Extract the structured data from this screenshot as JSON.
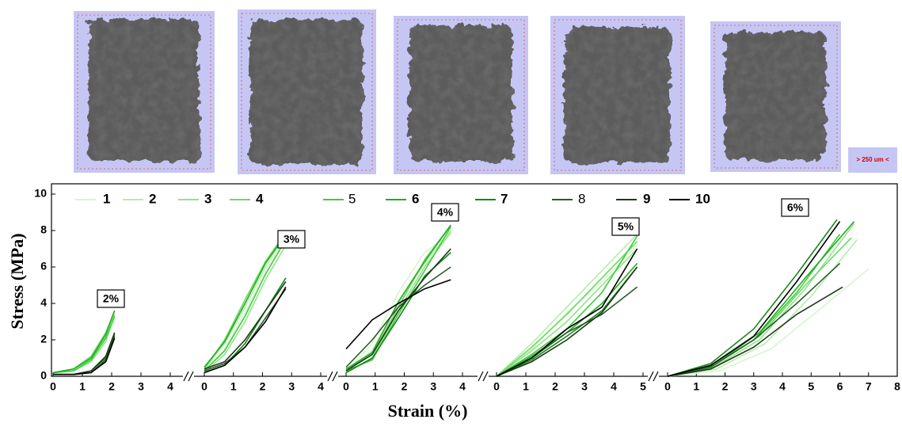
{
  "scale_bar": "> 250 um <",
  "chart_data": {
    "type": "line",
    "ylabel": "Stress (MPa)",
    "xlabel": "Strain (%)",
    "ylim": [
      0,
      10
    ],
    "yticks": [
      0,
      2,
      4,
      6,
      8,
      10
    ],
    "series": [
      {
        "name": "1",
        "color": "#d6f5cf"
      },
      {
        "name": "2",
        "color": "#b5edab"
      },
      {
        "name": "3",
        "color": "#8fe486"
      },
      {
        "name": "4",
        "color": "#69d962"
      },
      {
        "name": "5",
        "color": "#3fcb3c"
      },
      {
        "name": "6",
        "color": "#22ad22"
      },
      {
        "name": "7",
        "color": "#178617"
      },
      {
        "name": "8",
        "color": "#2b5a2b"
      },
      {
        "name": "9",
        "color": "#1b3a1b"
      },
      {
        "name": "10",
        "color": "#000000"
      }
    ],
    "panels": [
      {
        "label": "2%",
        "xlim": [
          0,
          4
        ],
        "xticks": [
          0,
          1,
          2,
          3,
          4
        ],
        "series": [
          {
            "x": [
              0,
              0.7,
              1.3,
              1.8,
              2.1
            ],
            "values": [
              0.2,
              0.3,
              0.9,
              2.0,
              3.0
            ]
          },
          {
            "x": [
              0,
              0.7,
              1.3,
              1.8,
              2.1
            ],
            "values": [
              0.2,
              0.4,
              1.0,
              2.2,
              3.2
            ]
          },
          {
            "x": [
              0,
              0.7,
              1.3,
              1.8,
              2.1
            ],
            "values": [
              0.2,
              0.3,
              0.8,
              1.9,
              3.4
            ]
          },
          {
            "x": [
              0,
              0.7,
              1.3,
              1.8,
              2.1
            ],
            "values": [
              0.2,
              0.4,
              1.1,
              2.4,
              3.6
            ]
          },
          {
            "x": [
              0,
              0.7,
              1.3,
              1.8,
              2.1
            ],
            "values": [
              0.2,
              0.3,
              0.9,
              2.1,
              3.3
            ]
          },
          {
            "x": [
              0,
              0.7,
              1.3,
              1.8,
              2.1
            ],
            "values": [
              0.2,
              0.4,
              1.0,
              2.3,
              3.6
            ]
          },
          {
            "x": [
              0,
              0.7,
              1.3,
              1.8,
              2.1
            ],
            "values": [
              0.1,
              0.1,
              0.3,
              1.0,
              2.3
            ]
          },
          {
            "x": [
              0,
              0.7,
              1.3,
              1.8,
              2.1
            ],
            "values": [
              0.1,
              0.1,
              0.2,
              0.9,
              2.2
            ]
          },
          {
            "x": [
              0,
              0.7,
              1.3,
              1.8,
              2.1
            ],
            "values": [
              0.1,
              0.1,
              0.3,
              1.1,
              2.4
            ]
          },
          {
            "x": [
              0,
              0.7,
              1.3,
              1.8,
              2.1
            ],
            "values": [
              0.1,
              0.1,
              0.2,
              0.8,
              2.1
            ]
          }
        ]
      },
      {
        "label": "3%",
        "xlim": [
          0,
          4
        ],
        "xticks": [
          0,
          1,
          2,
          3,
          4
        ],
        "series": [
          {
            "x": [
              0,
              0.7,
              1.4,
              2.1,
              2.8
            ],
            "values": [
              0.3,
              1.5,
              3.5,
              5.8,
              7.6
            ]
          },
          {
            "x": [
              0,
              0.7,
              1.4,
              2.1,
              2.8
            ],
            "values": [
              0.4,
              1.8,
              3.8,
              6.0,
              7.8
            ]
          },
          {
            "x": [
              0,
              0.7,
              1.4,
              2.1,
              2.8
            ],
            "values": [
              0.2,
              1.2,
              3.0,
              5.3,
              7.2
            ]
          },
          {
            "x": [
              0,
              0.7,
              1.4,
              2.1,
              2.8
            ],
            "values": [
              0.4,
              2.0,
              4.2,
              6.3,
              7.9
            ]
          },
          {
            "x": [
              0,
              0.7,
              1.4,
              2.1,
              2.8
            ],
            "values": [
              0.3,
              1.4,
              3.3,
              5.6,
              7.5
            ]
          },
          {
            "x": [
              0,
              0.7,
              1.4,
              2.1,
              2.8
            ],
            "values": [
              0.5,
              1.9,
              4.0,
              6.2,
              7.8
            ]
          },
          {
            "x": [
              0,
              0.7,
              1.4,
              2.1,
              2.8
            ],
            "values": [
              0.2,
              0.6,
              1.8,
              3.6,
              5.4
            ]
          },
          {
            "x": [
              0,
              0.7,
              1.4,
              2.1,
              2.8
            ],
            "values": [
              0.3,
              0.7,
              1.6,
              3.2,
              4.8
            ]
          },
          {
            "x": [
              0,
              0.7,
              1.4,
              2.1,
              2.8
            ],
            "values": [
              0.4,
              0.8,
              2.0,
              3.6,
              5.2
            ]
          },
          {
            "x": [
              0,
              0.7,
              1.4,
              2.1,
              2.8
            ],
            "values": [
              0.2,
              0.6,
              1.6,
              3.0,
              4.9
            ]
          }
        ]
      },
      {
        "label": "4%",
        "xlim": [
          0,
          4
        ],
        "xticks": [
          0,
          1,
          2,
          3,
          4
        ],
        "series": [
          {
            "x": [
              0,
              0.9,
              1.8,
              2.7,
              3.6
            ],
            "values": [
              0.2,
              1.8,
              4.6,
              6.8,
              7.8
            ]
          },
          {
            "x": [
              0,
              0.9,
              1.8,
              2.7,
              3.6
            ],
            "values": [
              0.3,
              1.4,
              4.0,
              6.2,
              8.0
            ]
          },
          {
            "x": [
              0,
              0.9,
              1.8,
              2.7,
              3.6
            ],
            "values": [
              0.2,
              1.0,
              3.6,
              6.0,
              7.9
            ]
          },
          {
            "x": [
              0,
              0.9,
              1.8,
              2.7,
              3.6
            ],
            "values": [
              0.4,
              1.2,
              3.8,
              6.4,
              8.3
            ]
          },
          {
            "x": [
              0,
              0.9,
              1.8,
              2.7,
              3.6
            ],
            "values": [
              0.3,
              0.9,
              3.4,
              5.8,
              8.2
            ]
          },
          {
            "x": [
              0,
              0.9,
              1.8,
              2.7,
              3.6
            ],
            "values": [
              0.4,
              1.3,
              4.1,
              6.3,
              8.3
            ]
          },
          {
            "x": [
              0,
              0.9,
              1.8,
              2.7,
              3.6
            ],
            "values": [
              0.2,
              1.0,
              3.2,
              5.5,
              6.8
            ]
          },
          {
            "x": [
              0,
              0.9,
              1.8,
              2.7,
              3.6
            ],
            "values": [
              0.5,
              2.0,
              3.8,
              5.0,
              6.0
            ]
          },
          {
            "x": [
              0,
              0.9,
              1.8,
              2.7,
              3.6
            ],
            "values": [
              0.3,
              1.2,
              3.6,
              5.4,
              7.0
            ]
          },
          {
            "x": [
              0,
              0.9,
              1.8,
              2.7,
              3.6
            ],
            "values": [
              1.5,
              3.1,
              4.0,
              4.8,
              5.3
            ]
          }
        ]
      },
      {
        "label": "5%",
        "xlim": [
          0,
          5
        ],
        "xticks": [
          0,
          1,
          2,
          3,
          4,
          5
        ],
        "series": [
          {
            "x": [
              0,
              1.2,
              2.4,
              3.6,
              4.8
            ],
            "values": [
              0,
              1.5,
              3.5,
              5.2,
              7.2
            ]
          },
          {
            "x": [
              0,
              1.2,
              2.4,
              3.6,
              4.8
            ],
            "values": [
              0,
              1.8,
              3.8,
              5.8,
              7.8
            ]
          },
          {
            "x": [
              0,
              1.2,
              2.4,
              3.6,
              4.8
            ],
            "values": [
              0,
              1.4,
              3.0,
              5.0,
              7.0
            ]
          },
          {
            "x": [
              0,
              1.2,
              2.4,
              3.6,
              4.8
            ],
            "values": [
              0,
              1.6,
              3.4,
              5.4,
              7.4
            ]
          },
          {
            "x": [
              0,
              1.2,
              2.4,
              3.6,
              4.8
            ],
            "values": [
              0,
              1.2,
              2.6,
              4.6,
              7.7
            ]
          },
          {
            "x": [
              0,
              1.2,
              2.4,
              3.6,
              4.8
            ],
            "values": [
              0,
              1.1,
              2.4,
              4.0,
              6.2
            ]
          },
          {
            "x": [
              0,
              1.2,
              2.4,
              3.6,
              4.8
            ],
            "values": [
              0,
              0.9,
              2.2,
              3.6,
              6.0
            ]
          },
          {
            "x": [
              0,
              1.2,
              2.4,
              3.6,
              4.8
            ],
            "values": [
              0,
              1.0,
              2.4,
              3.4,
              4.9
            ]
          },
          {
            "x": [
              0,
              1.2,
              2.4,
              3.6,
              4.8
            ],
            "values": [
              0,
              0.8,
              2.0,
              3.5,
              6.0
            ]
          },
          {
            "x": [
              0,
              1.2,
              2.4,
              3.6,
              4.8
            ],
            "values": [
              0,
              1.0,
              2.6,
              3.8,
              7.0
            ]
          }
        ]
      },
      {
        "label": "6%",
        "xlim": [
          0,
          8
        ],
        "xticks": [
          0,
          1,
          2,
          3,
          4,
          5,
          6,
          7,
          8
        ],
        "series": [
          {
            "x": [
              0,
              1.8,
              3.6,
              5.4,
              7.0
            ],
            "values": [
              0,
              0.3,
              1.5,
              3.8,
              5.9
            ]
          },
          {
            "x": [
              0,
              1.7,
              3.4,
              5.0,
              6.6
            ],
            "values": [
              0,
              0.4,
              1.8,
              4.4,
              7.5
            ]
          },
          {
            "x": [
              0,
              1.6,
              3.2,
              4.8,
              6.5
            ],
            "values": [
              0,
              0.5,
              2.0,
              4.8,
              8.4
            ]
          },
          {
            "x": [
              0,
              1.6,
              3.2,
              4.8,
              6.4
            ],
            "values": [
              0,
              0.6,
              2.2,
              5.0,
              7.6
            ]
          },
          {
            "x": [
              0,
              1.5,
              3.0,
              4.5,
              6.0
            ],
            "values": [
              0,
              0.5,
              2.0,
              4.6,
              7.8
            ]
          },
          {
            "x": [
              0,
              1.6,
              3.2,
              4.8,
              6.5
            ],
            "values": [
              0,
              0.6,
              2.4,
              5.4,
              8.5
            ]
          },
          {
            "x": [
              0,
              1.5,
              3.0,
              4.5,
              5.9
            ],
            "values": [
              0,
              0.7,
              2.6,
              5.6,
              8.6
            ]
          },
          {
            "x": [
              0,
              1.5,
              3.0,
              4.5,
              6.0
            ],
            "values": [
              0,
              0.5,
              2.0,
              4.0,
              6.2
            ]
          },
          {
            "x": [
              0,
              1.5,
              3.0,
              4.5,
              6.1
            ],
            "values": [
              0,
              0.4,
              1.6,
              3.4,
              4.9
            ]
          },
          {
            "x": [
              0,
              1.5,
              3.0,
              4.5,
              6.0
            ],
            "values": [
              0,
              0.6,
              2.2,
              5.2,
              8.5
            ]
          }
        ]
      }
    ]
  }
}
